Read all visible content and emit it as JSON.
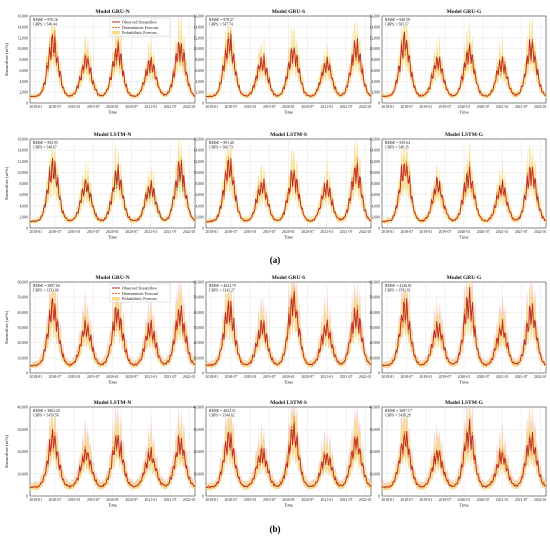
{
  "figure": {
    "caption_a": "(a)",
    "caption_b": "(b)",
    "legend": {
      "observed": "Observed Streamflow",
      "deterministic": "Deterministic Forecast",
      "probabilistic": "Probabilistic Forecast"
    },
    "colors": {
      "observed": "#c0282a",
      "deterministic": "#e07b1a",
      "deterministic_alt": "#5f8a2a",
      "band": "#f7dd8a",
      "band_alt": "#f3b6bf",
      "grid": "#dddddd"
    }
  },
  "chart_data": [
    {
      "panel": "a",
      "type": "line",
      "title": "Model GRU-N",
      "metrics": [
        "RMSE = 876.16",
        "CRPS = 546.44"
      ],
      "xlabel": "Time",
      "ylabel": "Streamflow (m³/s)",
      "x_ticks": [
        "2018-01",
        "2018-07",
        "2019-01",
        "2019-07",
        "2020-01",
        "2020-07",
        "2021-01",
        "2021-07",
        "2022-01"
      ],
      "ylim": [
        0,
        16000
      ],
      "y_ticks": [
        "0",
        "2,000",
        "4,000",
        "6,000",
        "8,000",
        "10,000",
        "12,000",
        "14,000",
        "16,000"
      ],
      "peaks": [
        13000,
        9000,
        11000,
        8500,
        12000
      ],
      "base": 1200,
      "legend": true
    },
    {
      "panel": "a",
      "type": "line",
      "title": "Model GRU-S",
      "metrics": [
        "RMSE = 878.27",
        "CRPS = 547.74"
      ],
      "xlabel": "Time",
      "ylabel": "",
      "x_ticks": [
        "2018-01",
        "2018-07",
        "2019-01",
        "2019-07",
        "2020-01",
        "2020-07",
        "2021-01",
        "2021-07",
        "2022-01"
      ],
      "ylim": [
        0,
        16000
      ],
      "y_ticks": [
        "0",
        "2,000",
        "4,000",
        "6,000",
        "8,000",
        "10,000",
        "12,000",
        "14,000",
        "16,000"
      ],
      "peaks": [
        13000,
        9000,
        11000,
        8500,
        12000
      ],
      "base": 1200,
      "legend": false
    },
    {
      "panel": "a",
      "type": "line",
      "title": "Model GRU-G",
      "metrics": [
        "RMSE = 940.59",
        "CRPS = 565.17"
      ],
      "xlabel": "Time",
      "ylabel": "",
      "x_ticks": [
        "2018-01",
        "2018-07",
        "2019-01",
        "2019-07",
        "2020-01",
        "2020-07",
        "2021-01",
        "2021-07",
        "2022-01"
      ],
      "ylim": [
        0,
        16000
      ],
      "y_ticks": [
        "0",
        "2,000",
        "4,000",
        "6,000",
        "8,000",
        "10,000",
        "12,000",
        "14,000",
        "16,000"
      ],
      "peaks": [
        13000,
        9000,
        11000,
        8500,
        12000
      ],
      "base": 1200,
      "legend": false
    },
    {
      "panel": "a",
      "type": "line",
      "title": "Model LSTM-N",
      "metrics": [
        "RMSE = 992.95",
        "CRPS = 548.67"
      ],
      "xlabel": "Time",
      "ylabel": "Streamflow (m³/s)",
      "x_ticks": [
        "2018-01",
        "2018-07",
        "2019-01",
        "2019-07",
        "2020-01",
        "2020-07",
        "2021-01",
        "2021-07",
        "2022-01"
      ],
      "ylim": [
        0,
        16000
      ],
      "y_ticks": [
        "0",
        "2,000",
        "4,000",
        "6,000",
        "8,000",
        "10,000",
        "12,000",
        "14,000",
        "16,000"
      ],
      "peaks": [
        13000,
        9000,
        11000,
        8500,
        12000
      ],
      "base": 1200,
      "legend": false,
      "det_alt": true
    },
    {
      "panel": "a",
      "type": "line",
      "title": "Model LSTM-S",
      "metrics": [
        "RMSE = 891.40",
        "CRPS = 560.73"
      ],
      "xlabel": "Time",
      "ylabel": "",
      "x_ticks": [
        "2018-01",
        "2018-07",
        "2019-01",
        "2019-07",
        "2020-01",
        "2020-07",
        "2021-01",
        "2021-07",
        "2022-01"
      ],
      "ylim": [
        0,
        16000
      ],
      "y_ticks": [
        "0",
        "2,000",
        "4,000",
        "6,000",
        "8,000",
        "10,000",
        "12,000",
        "14,000",
        "16,000"
      ],
      "peaks": [
        13000,
        9000,
        11000,
        8500,
        12000
      ],
      "base": 1200,
      "legend": false
    },
    {
      "panel": "a",
      "type": "line",
      "title": "Model LSTM-G",
      "metrics": [
        "RMSE = 939.64",
        "CRPS = 548.35"
      ],
      "xlabel": "Time",
      "ylabel": "",
      "x_ticks": [
        "2018-01",
        "2018-07",
        "2019-01",
        "2019-07",
        "2020-01",
        "2020-07",
        "2021-01",
        "2021-07",
        "2022-01"
      ],
      "ylim": [
        0,
        16000
      ],
      "y_ticks": [
        "0",
        "2,000",
        "4,000",
        "6,000",
        "8,000",
        "10,000",
        "12,000",
        "14,000",
        "16,000"
      ],
      "peaks": [
        13000,
        9000,
        11000,
        8500,
        12000
      ],
      "base": 1200,
      "legend": false
    },
    {
      "panel": "b",
      "type": "line",
      "title": "Model GRU-N",
      "metrics": [
        "RMSE = 3897.60",
        "CRPS = 1353.06"
      ],
      "xlabel": "Time",
      "ylabel": "Streamflow (m³/s)",
      "x_ticks": [
        "2018-01",
        "2018-07",
        "2019-01",
        "2019-07",
        "2020-01",
        "2020-07",
        "2021-01",
        "2021-07",
        "2022-01"
      ],
      "ylim": [
        0,
        60000
      ],
      "y_ticks": [
        "0",
        "10,000",
        "20,000",
        "30,000",
        "40,000",
        "50,000",
        "60,000"
      ],
      "peaks": [
        50000,
        35000,
        46000,
        34000,
        45000
      ],
      "base": 5000,
      "legend": true
    },
    {
      "panel": "b",
      "type": "line",
      "title": "Model GRU-S",
      "metrics": [
        "RMSE = 4024.79",
        "CRPS = 1343.27"
      ],
      "xlabel": "Time",
      "ylabel": "",
      "x_ticks": [
        "2018-01",
        "2018-07",
        "2019-01",
        "2019-07",
        "2020-01",
        "2020-07",
        "2021-01",
        "2021-07",
        "2022-01"
      ],
      "ylim": [
        0,
        60000
      ],
      "y_ticks": [
        "0",
        "10,000",
        "20,000",
        "30,000",
        "40,000",
        "50,000",
        "60,000"
      ],
      "peaks": [
        50000,
        35000,
        55000,
        34000,
        45000
      ],
      "base": 5000,
      "legend": false
    },
    {
      "panel": "b",
      "type": "line",
      "title": "Model GRU-G",
      "metrics": [
        "RMSE = 4126.81",
        "CRPS = 1592.61"
      ],
      "xlabel": "Time",
      "ylabel": "",
      "x_ticks": [
        "2018-01",
        "2018-07",
        "2019-01",
        "2019-07",
        "2020-01",
        "2020-07",
        "2021-01",
        "2021-07",
        "2022-01"
      ],
      "ylim": [
        0,
        60000
      ],
      "y_ticks": [
        "0",
        "10,000",
        "20,000",
        "30,000",
        "40,000",
        "50,000",
        "60,000"
      ],
      "peaks": [
        50000,
        35000,
        55000,
        34000,
        45000
      ],
      "base": 5000,
      "legend": false
    },
    {
      "panel": "b",
      "type": "line",
      "title": "Model LSTM-N",
      "metrics": [
        "RMSE = 3863.20",
        "CRPS = 1459.56"
      ],
      "xlabel": "Time",
      "ylabel": "Streamflow (m³/s)",
      "x_ticks": [
        "2018-01",
        "2018-07",
        "2019-01",
        "2019-07",
        "2020-01",
        "2020-07",
        "2021-01",
        "2021-07",
        "2022-01"
      ],
      "ylim": [
        0,
        40000
      ],
      "y_ticks": [
        "0",
        "10,000",
        "20,000",
        "30,000",
        "40,000"
      ],
      "peaks": [
        30000,
        22000,
        29000,
        21000,
        27000
      ],
      "base": 4000,
      "legend": false
    },
    {
      "panel": "b",
      "type": "line",
      "title": "Model LSTM-S",
      "metrics": [
        "RMSE = 4022.51",
        "CRPS = 1544.62"
      ],
      "xlabel": "Time",
      "ylabel": "",
      "x_ticks": [
        "2018-01",
        "2018-07",
        "2019-01",
        "2019-07",
        "2020-01",
        "2020-07",
        "2021-01",
        "2021-07",
        "2022-01"
      ],
      "ylim": [
        0,
        40000
      ],
      "y_ticks": [
        "0",
        "10,000",
        "20,000",
        "30,000",
        "40,000"
      ],
      "peaks": [
        30000,
        22000,
        33000,
        21000,
        29000
      ],
      "base": 4000,
      "legend": false
    },
    {
      "panel": "b",
      "type": "line",
      "title": "Model LSTM-G",
      "metrics": [
        "RMSE = 3687.17",
        "CRPS = 1438.28"
      ],
      "xlabel": "Time",
      "ylabel": "",
      "x_ticks": [
        "2018-01",
        "2018-07",
        "2019-01",
        "2019-07",
        "2020-01",
        "2020-07",
        "2021-01",
        "2021-07",
        "2022-01"
      ],
      "ylim": [
        0,
        40000
      ],
      "y_ticks": [
        "0",
        "10,000",
        "20,000",
        "30,000",
        "40,000"
      ],
      "peaks": [
        30000,
        22000,
        33000,
        21000,
        29000
      ],
      "base": 4000,
      "legend": false
    }
  ]
}
